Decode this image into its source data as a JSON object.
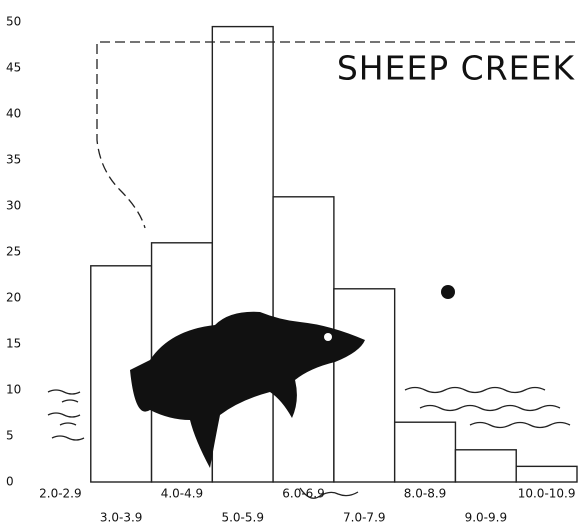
{
  "chart_data": {
    "type": "bar",
    "title": "SHEEP CREEK",
    "categories": [
      "2.0-2.9",
      "3.0-3.9",
      "4.0-4.9",
      "5.0-5.9",
      "6.0-6.9",
      "7.0-7.9",
      "8.0-8.9",
      "9.0-9.9",
      "10.0-10.9"
    ],
    "values": [
      0,
      23.5,
      26,
      49.5,
      31,
      21,
      6.5,
      3.5,
      1.7
    ],
    "color": "#ffffff",
    "ylim": [
      0,
      50
    ],
    "yticks": [
      0,
      5,
      10,
      15,
      20,
      25,
      30,
      35,
      40,
      45,
      50
    ],
    "grid": false
  }
}
